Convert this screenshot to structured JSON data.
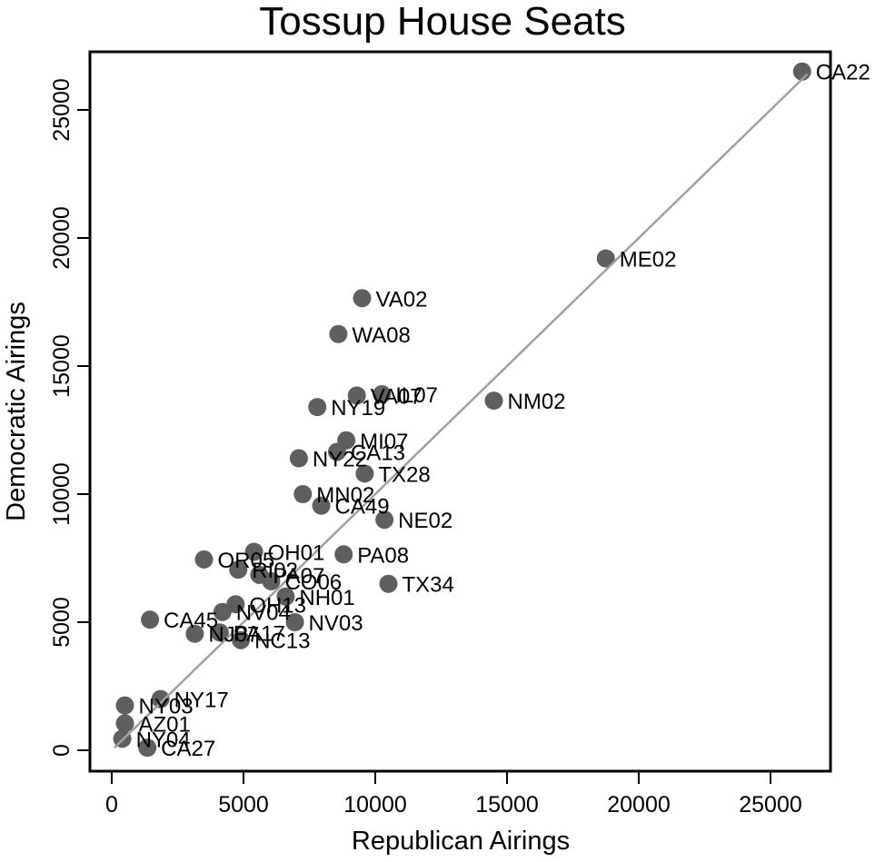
{
  "chart_data": {
    "type": "scatter",
    "title": "Tossup House Seats",
    "xlabel": "Republican Airings",
    "ylabel": "Democratic Airings",
    "xlim": [
      -800,
      27300
    ],
    "ylim": [
      -800,
      27300
    ],
    "xticks": [
      0,
      5000,
      10000,
      15000,
      20000,
      25000
    ],
    "yticks": [
      0,
      5000,
      10000,
      15000,
      20000,
      25000
    ],
    "grid": false,
    "legend": null,
    "marker_color": "#5f5f5f",
    "line_color": "#a0a0a0",
    "fit_line": {
      "x": [
        100,
        26400
      ],
      "y": [
        100,
        26400
      ]
    },
    "points": [
      {
        "label": "CA22",
        "x": 26200,
        "y": 26500
      },
      {
        "label": "ME02",
        "x": 18750,
        "y": 19200
      },
      {
        "label": "VA02",
        "x": 9500,
        "y": 17650
      },
      {
        "label": "WA08",
        "x": 8600,
        "y": 16250
      },
      {
        "label": "VA07",
        "x": 9300,
        "y": 13850
      },
      {
        "label": "IL07",
        "x": 10250,
        "y": 13900
      },
      {
        "label": "NY19",
        "x": 7800,
        "y": 13400
      },
      {
        "label": "NM02",
        "x": 14500,
        "y": 13650
      },
      {
        "label": "MI07",
        "x": 8900,
        "y": 12100
      },
      {
        "label": "CA13",
        "x": 8550,
        "y": 11650
      },
      {
        "label": "NY22",
        "x": 7100,
        "y": 11400
      },
      {
        "label": "TX28",
        "x": 9600,
        "y": 10800
      },
      {
        "label": "MN02",
        "x": 7250,
        "y": 10000
      },
      {
        "label": "CA49",
        "x": 7950,
        "y": 9550
      },
      {
        "label": "NE02",
        "x": 10350,
        "y": 9000
      },
      {
        "label": "OH01",
        "x": 5400,
        "y": 7750
      },
      {
        "label": "PA08",
        "x": 8800,
        "y": 7650
      },
      {
        "label": "OR05",
        "x": 3500,
        "y": 7450
      },
      {
        "label": "RI02",
        "x": 4800,
        "y": 7050
      },
      {
        "label": "PA07",
        "x": 5600,
        "y": 6850
      },
      {
        "label": "CO06",
        "x": 6050,
        "y": 6600
      },
      {
        "label": "TX34",
        "x": 10500,
        "y": 6500
      },
      {
        "label": "NH01",
        "x": 6600,
        "y": 6000
      },
      {
        "label": "OH13",
        "x": 4700,
        "y": 5700
      },
      {
        "label": "NV04",
        "x": 4200,
        "y": 5400
      },
      {
        "label": "NV03",
        "x": 6950,
        "y": 5000
      },
      {
        "label": "CA45",
        "x": 1450,
        "y": 5100
      },
      {
        "label": "NJ07",
        "x": 3150,
        "y": 4550
      },
      {
        "label": "PA17",
        "x": 4100,
        "y": 4600
      },
      {
        "label": "NC13",
        "x": 4900,
        "y": 4300
      },
      {
        "label": "NY03",
        "x": 500,
        "y": 1750
      },
      {
        "label": "NY17",
        "x": 1850,
        "y": 2000
      },
      {
        "label": "AZ01",
        "x": 500,
        "y": 1050
      },
      {
        "label": "NY04",
        "x": 400,
        "y": 450
      },
      {
        "label": "CA27",
        "x": 1350,
        "y": 100
      }
    ]
  }
}
